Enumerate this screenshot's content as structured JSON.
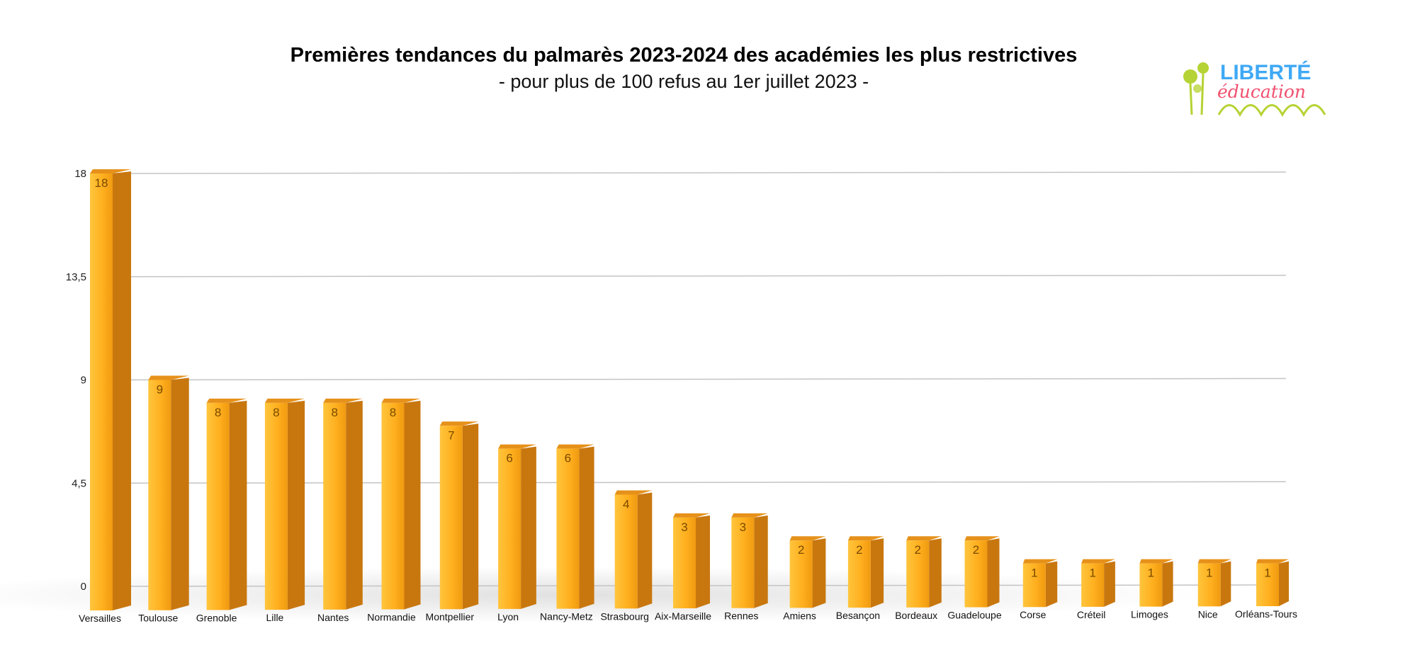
{
  "chart_data": {
    "type": "bar",
    "title": "Premières tendances du palmarès 2023-2024 des académies les plus restrictives",
    "subtitle": "- pour plus de 100 refus au 1er juillet 2023 -",
    "categories": [
      "Versailles",
      "Toulouse",
      "Grenoble",
      "Lille",
      "Nantes",
      "Normandie",
      "Montpellier",
      "Lyon",
      "Nancy-Metz",
      "Strasbourg",
      "Aix-Marseille",
      "Rennes",
      "Amiens",
      "Besançon",
      "Bordeaux",
      "Guadeloupe",
      "Corse",
      "Créteil",
      "Limoges",
      "Nice",
      "Orléans-Tours"
    ],
    "values": [
      18,
      9,
      8,
      8,
      8,
      8,
      7,
      6,
      6,
      4,
      3,
      3,
      2,
      2,
      2,
      2,
      1,
      1,
      1,
      1,
      1
    ],
    "yticks": [
      "0",
      "4,5",
      "9",
      "13,5",
      "18"
    ],
    "ytick_values": [
      0,
      4.5,
      9,
      13.5,
      18
    ],
    "ylim": [
      0,
      18
    ],
    "grid": true,
    "bar_color": "#ffb01f",
    "bar_side_color": "#c8770f"
  },
  "logo": {
    "line1": "LIBERTÉ",
    "line2": "éducation",
    "color1": "#3fa9f5",
    "color2": "#f0506e",
    "plant_color": "#b5d334"
  }
}
